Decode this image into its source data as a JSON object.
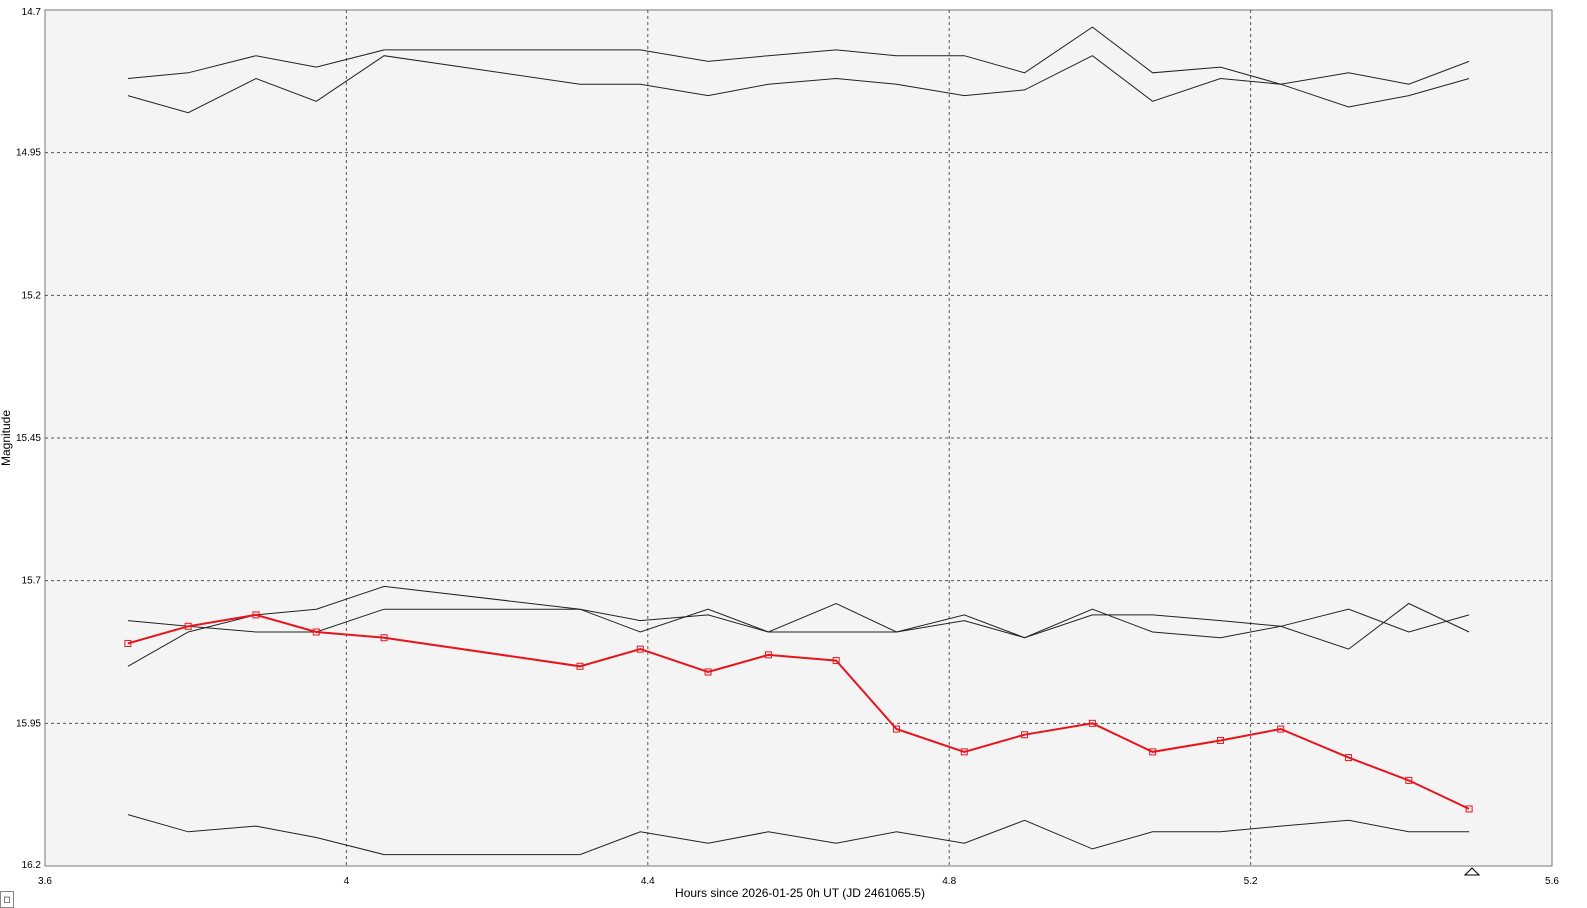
{
  "chart_data": {
    "type": "line",
    "xlabel": "Hours since 2026-01-25 0h UT (JD 2461065.5)",
    "ylabel": "Magnitude",
    "xlim": [
      3.6,
      5.6
    ],
    "ylim": [
      14.7,
      16.2
    ],
    "y_inverted": true,
    "grid": true,
    "x_ticks": [
      "3.6",
      "4",
      "4.4",
      "4.8",
      "5.2",
      "5.6"
    ],
    "y_ticks": [
      "14.7",
      "14.95",
      "15.2",
      "15.45",
      "15.7",
      "15.95",
      "16.2"
    ],
    "x": [
      3.71,
      3.79,
      3.88,
      3.96,
      4.05,
      4.31,
      4.39,
      4.48,
      4.56,
      4.65,
      4.73,
      4.82,
      4.9,
      4.99,
      5.07,
      5.16,
      5.24,
      5.33,
      5.41,
      5.49
    ],
    "series": [
      {
        "role": "target",
        "color": "#e8141c",
        "marker": "square",
        "values": [
          15.81,
          15.78,
          15.76,
          15.79,
          15.8,
          15.85,
          15.82,
          15.86,
          15.83,
          15.84,
          15.96,
          16.0,
          15.97,
          15.95,
          16.0,
          15.98,
          15.96,
          16.01,
          16.05,
          16.1
        ]
      },
      {
        "role": "comparison-1",
        "color": "#222222",
        "values": [
          14.82,
          14.81,
          14.78,
          14.8,
          14.77,
          14.77,
          14.77,
          14.79,
          14.78,
          14.77,
          14.78,
          14.78,
          14.81,
          14.73,
          14.81,
          14.8,
          14.83,
          14.81,
          14.83,
          14.79
        ]
      },
      {
        "role": "comparison-2",
        "color": "#222222",
        "values": [
          14.85,
          14.88,
          14.82,
          14.86,
          14.78,
          14.83,
          14.83,
          14.85,
          14.83,
          14.82,
          14.83,
          14.85,
          14.84,
          14.78,
          14.86,
          14.82,
          14.83,
          14.87,
          14.85,
          14.82
        ]
      },
      {
        "role": "comparison-3",
        "color": "#222222",
        "values": [
          15.77,
          15.78,
          15.79,
          15.79,
          15.75,
          15.75,
          15.77,
          15.76,
          15.79,
          15.79,
          15.79,
          15.77,
          15.8,
          15.76,
          15.76,
          15.77,
          15.78,
          15.82,
          15.74,
          15.79
        ]
      },
      {
        "role": "comparison-4",
        "color": "#222222",
        "values": [
          15.85,
          15.79,
          15.76,
          15.75,
          15.71,
          15.75,
          15.79,
          15.75,
          15.79,
          15.74,
          15.79,
          15.76,
          15.8,
          15.75,
          15.79,
          15.8,
          15.78,
          15.75,
          15.79,
          15.76
        ]
      },
      {
        "role": "comparison-5",
        "color": "#222222",
        "values": [
          16.11,
          16.14,
          16.13,
          16.15,
          16.18,
          16.18,
          16.14,
          16.16,
          16.14,
          16.16,
          16.14,
          16.16,
          16.12,
          16.17,
          16.14,
          16.14,
          16.13,
          16.12,
          16.14,
          16.14
        ]
      }
    ],
    "colors": {
      "plot_background": "#f4f4f4",
      "grid": "#555555",
      "target": "#e8141c",
      "comparison": "#222222"
    }
  },
  "corner_glyph": "◻"
}
